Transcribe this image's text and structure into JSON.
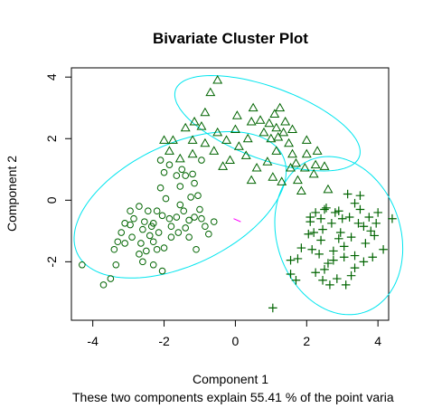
{
  "chart_data": {
    "type": "scatter",
    "title": "Bivariate Cluster Plot",
    "xlabel": "Component 1",
    "ylabel": "Component 2",
    "subtitle": "These two components explain 55.41 % of the point varia",
    "xlim": [
      -4.6,
      4.3
    ],
    "ylim": [
      -3.9,
      4.3
    ],
    "x_ticks": [
      -4,
      -2,
      0,
      2,
      4
    ],
    "y_ticks": [
      -2,
      0,
      2,
      4
    ],
    "tick_labels_x": [
      "-4",
      "-2",
      "0",
      "2",
      "4"
    ],
    "tick_labels_y": [
      "-2",
      "0",
      "2",
      "4"
    ],
    "colors": {
      "points": "#006400",
      "ellipse": "#00e5ee",
      "connector": "#ff00ff",
      "axes": "#000000"
    },
    "ellipses": [
      {
        "cx": -1.55,
        "cy": -0.15,
        "rx": 3.3,
        "ry": 1.9,
        "angle": 32
      },
      {
        "cx": 0.9,
        "cy": 2.5,
        "rx": 2.8,
        "ry": 1.15,
        "angle": -24
      },
      {
        "cx": 2.9,
        "cy": -1.15,
        "rx": 1.75,
        "ry": 2.6,
        "angle": 12
      }
    ],
    "connector": {
      "x": [
        -0.05,
        0.15
      ],
      "y": [
        -0.6,
        -0.7
      ]
    },
    "series": [
      {
        "marker": "circle",
        "points": [
          [
            -4.3,
            -2.1
          ],
          [
            -3.7,
            -2.75
          ],
          [
            -3.5,
            -2.55
          ],
          [
            -3.35,
            -2.1
          ],
          [
            -3.4,
            -1.6
          ],
          [
            -3.3,
            -1.35
          ],
          [
            -3.1,
            -1.4
          ],
          [
            -3.2,
            -1.05
          ],
          [
            -2.95,
            -0.8
          ],
          [
            -2.85,
            -0.6
          ],
          [
            -2.9,
            -1.2
          ],
          [
            -3.1,
            -0.75
          ],
          [
            -2.7,
            -1.75
          ],
          [
            -2.65,
            -1.4
          ],
          [
            -2.6,
            -0.95
          ],
          [
            -2.5,
            -1.65
          ],
          [
            -2.4,
            -1.15
          ],
          [
            -2.3,
            -0.75
          ],
          [
            -2.2,
            -0.35
          ],
          [
            -2.45,
            -0.35
          ],
          [
            -2.55,
            -0.7
          ],
          [
            -2.3,
            -1.35
          ],
          [
            -2.2,
            -1.6
          ],
          [
            -2.15,
            -1.05
          ],
          [
            -2.05,
            -0.5
          ],
          [
            -2.0,
            -1.55
          ],
          [
            -1.95,
            0.05
          ],
          [
            -1.85,
            -0.6
          ],
          [
            -1.8,
            -0.85
          ],
          [
            -1.8,
            -1.2
          ],
          [
            -2.05,
            -2.3
          ],
          [
            -2.3,
            -2.1
          ],
          [
            -1.65,
            -0.55
          ],
          [
            -1.6,
            -1.05
          ],
          [
            -1.55,
            -0.15
          ],
          [
            -1.55,
            0.45
          ],
          [
            -1.45,
            -0.35
          ],
          [
            -1.4,
            -0.9
          ],
          [
            -1.3,
            -0.65
          ],
          [
            -1.25,
            0.1
          ],
          [
            -1.15,
            0.55
          ],
          [
            -1.15,
            -0.55
          ],
          [
            -1.05,
            0.15
          ],
          [
            -1.0,
            -0.3
          ],
          [
            -0.95,
            -0.6
          ],
          [
            -0.85,
            -0.85
          ],
          [
            -0.75,
            -1.1
          ],
          [
            -0.6,
            -0.7
          ],
          [
            -1.65,
            0.8
          ],
          [
            -1.5,
            1.0
          ],
          [
            -1.2,
            0.85
          ],
          [
            -2.1,
            1.3
          ],
          [
            -1.85,
            1.15
          ],
          [
            -0.95,
            1.3
          ],
          [
            -2.1,
            0.4
          ],
          [
            -2.7,
            -0.2
          ],
          [
            -2.95,
            -0.35
          ],
          [
            -1.1,
            -1.6
          ],
          [
            -1.3,
            -1.2
          ],
          [
            -1.4,
            0.8
          ],
          [
            -2.0,
            0.9
          ],
          [
            -2.35,
            -0.85
          ],
          [
            -2.6,
            -2.0
          ]
        ]
      },
      {
        "marker": "triangle",
        "points": [
          [
            -0.5,
            3.9
          ],
          [
            -0.7,
            3.5
          ],
          [
            -0.85,
            2.85
          ],
          [
            -0.95,
            2.4
          ],
          [
            -1.15,
            2.55
          ],
          [
            -1.4,
            2.35
          ],
          [
            -2.0,
            1.95
          ],
          [
            -1.85,
            1.6
          ],
          [
            -1.55,
            1.35
          ],
          [
            -1.2,
            1.5
          ],
          [
            -0.85,
            1.85
          ],
          [
            -0.5,
            2.2
          ],
          [
            -0.25,
            1.95
          ],
          [
            0.0,
            2.3
          ],
          [
            0.1,
            1.75
          ],
          [
            0.35,
            2.0
          ],
          [
            0.45,
            2.55
          ],
          [
            0.5,
            3.0
          ],
          [
            0.7,
            2.6
          ],
          [
            0.8,
            2.2
          ],
          [
            0.95,
            2.5
          ],
          [
            1.0,
            2.0
          ],
          [
            1.1,
            2.8
          ],
          [
            1.15,
            2.35
          ],
          [
            1.25,
            3.0
          ],
          [
            1.35,
            2.2
          ],
          [
            1.4,
            2.55
          ],
          [
            1.5,
            1.85
          ],
          [
            1.6,
            1.5
          ],
          [
            1.7,
            1.2
          ],
          [
            1.55,
            1.05
          ],
          [
            1.75,
            0.65
          ],
          [
            1.95,
            1.05
          ],
          [
            2.0,
            1.5
          ],
          [
            2.3,
            1.6
          ],
          [
            2.5,
            1.1
          ],
          [
            2.6,
            0.35
          ],
          [
            2.2,
            0.85
          ],
          [
            1.85,
            0.3
          ],
          [
            1.05,
            0.75
          ],
          [
            0.9,
            1.25
          ],
          [
            0.6,
            1.05
          ],
          [
            -0.15,
            1.3
          ],
          [
            -0.35,
            1.1
          ],
          [
            -0.6,
            1.6
          ],
          [
            0.3,
            1.45
          ],
          [
            0.45,
            0.65
          ],
          [
            1.15,
            1.6
          ],
          [
            1.3,
            0.6
          ],
          [
            1.6,
            2.3
          ],
          [
            2.0,
            1.95
          ],
          [
            0.05,
            2.75
          ],
          [
            -1.75,
            1.95
          ],
          [
            -1.2,
            1.95
          ],
          [
            1.2,
            2.05
          ],
          [
            2.25,
            1.15
          ]
        ]
      },
      {
        "marker": "plus",
        "points": [
          [
            1.05,
            -3.5
          ],
          [
            1.7,
            -2.6
          ],
          [
            1.55,
            -2.4
          ],
          [
            1.75,
            -1.9
          ],
          [
            1.85,
            -1.55
          ],
          [
            1.55,
            -1.95
          ],
          [
            2.05,
            -1.1
          ],
          [
            2.1,
            -0.7
          ],
          [
            2.25,
            -0.4
          ],
          [
            2.4,
            -0.6
          ],
          [
            2.55,
            -0.25
          ],
          [
            2.7,
            -0.75
          ],
          [
            2.8,
            -0.4
          ],
          [
            3.0,
            -0.6
          ],
          [
            3.2,
            -0.55
          ],
          [
            3.45,
            -0.75
          ],
          [
            3.6,
            -0.85
          ],
          [
            3.75,
            -0.55
          ],
          [
            4.0,
            -0.4
          ],
          [
            3.95,
            -0.75
          ],
          [
            3.5,
            -0.3
          ],
          [
            3.35,
            -0.1
          ],
          [
            3.25,
            -1.2
          ],
          [
            3.05,
            -1.5
          ],
          [
            2.9,
            -1.25
          ],
          [
            2.75,
            -1.65
          ],
          [
            2.6,
            -2.05
          ],
          [
            2.5,
            -2.25
          ],
          [
            2.45,
            -2.6
          ],
          [
            2.85,
            -2.55
          ],
          [
            3.1,
            -2.75
          ],
          [
            3.35,
            -2.2
          ],
          [
            3.6,
            -2.0
          ],
          [
            3.85,
            -1.85
          ],
          [
            4.15,
            -1.6
          ],
          [
            3.9,
            -1.15
          ],
          [
            3.65,
            -1.4
          ],
          [
            3.35,
            -1.8
          ],
          [
            3.05,
            -1.85
          ],
          [
            2.75,
            -1.95
          ],
          [
            2.35,
            -1.75
          ],
          [
            2.2,
            -1.05
          ],
          [
            2.15,
            -1.6
          ],
          [
            2.25,
            -2.35
          ],
          [
            2.4,
            -1.3
          ],
          [
            2.45,
            -0.95
          ],
          [
            2.9,
            -0.35
          ],
          [
            3.15,
            0.2
          ],
          [
            3.5,
            0.15
          ],
          [
            3.8,
            -1.0
          ],
          [
            4.4,
            -0.6
          ],
          [
            2.5,
            -0.3
          ],
          [
            2.95,
            -1.05
          ],
          [
            3.25,
            -2.45
          ],
          [
            2.65,
            -2.75
          ],
          [
            2.1,
            -0.55
          ]
        ]
      }
    ]
  }
}
